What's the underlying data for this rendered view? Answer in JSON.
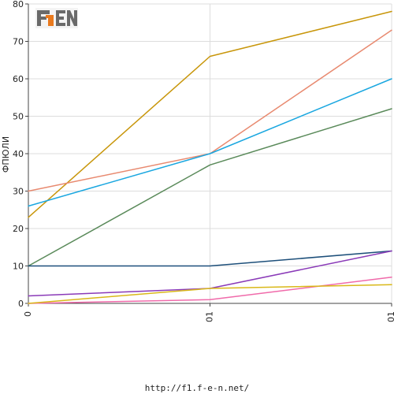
{
  "footer": {
    "url": "http://f1.f-e-n.net/"
  },
  "logo": {
    "text": "F1EN",
    "colors": {
      "dark": "#6a6a6a",
      "orange": "#ea7a1e"
    }
  },
  "chart_data": {
    "type": "line",
    "categories": [
      "0",
      "01",
      "01"
    ],
    "ylabel": "ФПЮЛИ",
    "ylim": [
      0,
      80
    ],
    "yticks": [
      0,
      10,
      20,
      30,
      40,
      50,
      60,
      70,
      80
    ],
    "grid": true,
    "series": [
      {
        "color": "#c8960a",
        "values": [
          23,
          66,
          78
        ]
      },
      {
        "color": "#e88a70",
        "values": [
          30,
          40,
          73
        ]
      },
      {
        "color": "#1aa7e0",
        "values": [
          26,
          40,
          60
        ]
      },
      {
        "color": "#5a8a5a",
        "values": [
          10,
          37,
          52
        ]
      },
      {
        "color": "#1d4f7a",
        "values": [
          10,
          10,
          14
        ]
      },
      {
        "color": "#8a3ab8",
        "values": [
          2,
          4,
          14
        ]
      },
      {
        "color": "#f06aaa",
        "values": [
          0,
          1,
          7
        ]
      },
      {
        "color": "#d9b818",
        "values": [
          0,
          4,
          5
        ]
      }
    ]
  }
}
